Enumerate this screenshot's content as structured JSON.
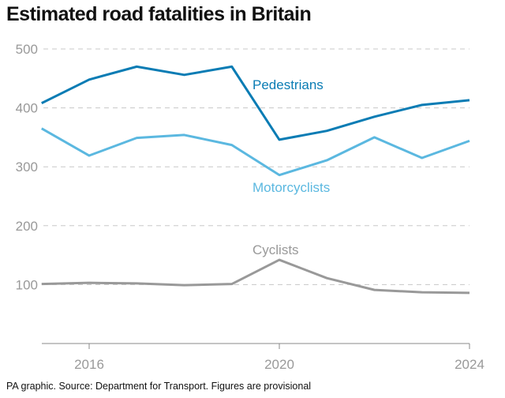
{
  "chart_data": {
    "type": "line",
    "title": "Estimated road fatalities in Britain",
    "footer": "PA graphic. Source: Department for Transport. Figures are provisional",
    "x": [
      2015,
      2016,
      2017,
      2018,
      2019,
      2020,
      2021,
      2022,
      2023,
      2024
    ],
    "xticks": [
      "2016",
      "2020",
      "2024"
    ],
    "yticks": [
      "100",
      "200",
      "300",
      "400",
      "500"
    ],
    "ylim": [
      0,
      500
    ],
    "grid": true,
    "series": [
      {
        "name": "Pedestrians",
        "color": "#0a7cb4",
        "values": [
          408,
          448,
          470,
          456,
          470,
          346,
          361,
          385,
          405,
          413
        ]
      },
      {
        "name": "Motorcyclists",
        "color": "#5bb8e0",
        "values": [
          365,
          319,
          349,
          354,
          337,
          286,
          311,
          350,
          315,
          344
        ]
      },
      {
        "name": "Cyclists",
        "color": "#999999",
        "values": [
          101,
          103,
          102,
          99,
          101,
          142,
          111,
          91,
          87,
          86
        ]
      }
    ]
  }
}
